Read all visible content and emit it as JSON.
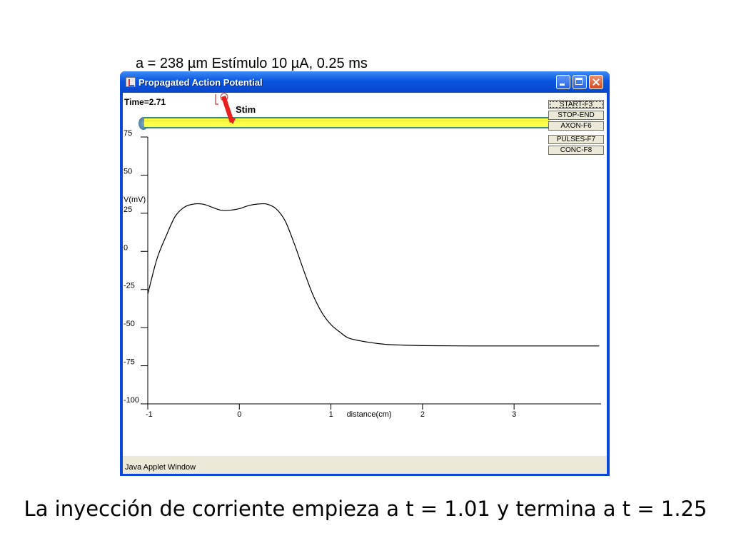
{
  "caption_top": "a = 238 µm  Estímulo 10 µA, 0.25  ms",
  "caption_bottom": "La inyección de corriente empieza a t = 1.01 y termina a t = 1.25",
  "window": {
    "title": "Propagated Action Potential",
    "status_text": "Java Applet Window"
  },
  "applet": {
    "time_label": "Time=2.71",
    "stim_label": "Stim",
    "buttons": [
      "START-F3",
      "STOP-END",
      "AXON-F6",
      "PULSES-F7",
      "CONC-F8"
    ]
  },
  "chart_data": {
    "type": "line",
    "xlabel": "distance(cm)",
    "ylabel": "V(mV)",
    "xlim": [
      -1,
      3.95
    ],
    "ylim": [
      -100,
      75
    ],
    "x_ticks": [
      -1,
      0,
      1,
      2,
      3
    ],
    "y_ticks": [
      75,
      50,
      25,
      0,
      -25,
      -50,
      -75,
      -100
    ],
    "y_tick_labels": [
      "75",
      "50",
      "25",
      "0",
      "-25",
      "-50",
      "-75",
      "-100"
    ],
    "series": [
      {
        "x": [
          -1.0,
          -0.9,
          -0.8,
          -0.7,
          -0.6,
          -0.5,
          -0.4,
          -0.3,
          -0.2,
          -0.1,
          0.0,
          0.1,
          0.2,
          0.3,
          0.4,
          0.5,
          0.6,
          0.7,
          0.8,
          0.9,
          1.0,
          1.1,
          1.2,
          1.4,
          1.6,
          1.8,
          2.0,
          2.5,
          3.0,
          3.5,
          3.93
        ],
        "y": [
          -28,
          -5,
          10,
          23,
          29,
          31,
          31,
          29,
          27,
          27,
          28,
          30,
          31,
          31,
          28,
          20,
          5,
          -12,
          -28,
          -40,
          -48,
          -53,
          -57,
          -59.5,
          -61,
          -61.5,
          -61.8,
          -62,
          -62,
          -62,
          -62
        ]
      }
    ]
  }
}
